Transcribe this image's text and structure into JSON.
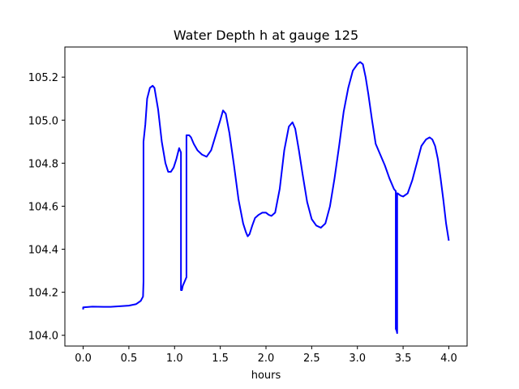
{
  "chart_data": {
    "type": "line",
    "title": "Water Depth h at gauge 125",
    "xlabel": "hours",
    "ylabel": "",
    "xlim": [
      -0.2,
      4.2
    ],
    "ylim": [
      103.95,
      105.34
    ],
    "xticks": [
      0.0,
      0.5,
      1.0,
      1.5,
      2.0,
      2.5,
      3.0,
      3.5,
      4.0
    ],
    "xtick_labels": [
      "0.0",
      "0.5",
      "1.0",
      "1.5",
      "2.0",
      "2.5",
      "3.0",
      "3.5",
      "4.0"
    ],
    "yticks": [
      104.0,
      104.2,
      104.4,
      104.6,
      104.8,
      105.0,
      105.2
    ],
    "ytick_labels": [
      "104.0",
      "104.2",
      "104.4",
      "104.6",
      "104.8",
      "105.0",
      "105.2"
    ],
    "grid": false,
    "series": [
      {
        "color": "#0000ff",
        "x": [
          0.0,
          0.0,
          0.1,
          0.3,
          0.5,
          0.58,
          0.63,
          0.655,
          0.66,
          0.66,
          0.68,
          0.7,
          0.73,
          0.76,
          0.78,
          0.82,
          0.86,
          0.9,
          0.93,
          0.96,
          0.99,
          1.02,
          1.05,
          1.07,
          1.07,
          1.08,
          1.09,
          1.11,
          1.13,
          1.13,
          1.14,
          1.16,
          1.18,
          1.21,
          1.25,
          1.3,
          1.35,
          1.4,
          1.45,
          1.5,
          1.53,
          1.56,
          1.6,
          1.65,
          1.7,
          1.75,
          1.78,
          1.8,
          1.82,
          1.85,
          1.88,
          1.92,
          1.96,
          2.0,
          2.03,
          2.06,
          2.1,
          2.15,
          2.2,
          2.25,
          2.29,
          2.32,
          2.36,
          2.4,
          2.45,
          2.5,
          2.55,
          2.6,
          2.65,
          2.7,
          2.75,
          2.8,
          2.85,
          2.9,
          2.95,
          3.0,
          3.03,
          3.06,
          3.09,
          3.12,
          3.16,
          3.2,
          3.25,
          3.3,
          3.35,
          3.4,
          3.42,
          3.42,
          3.43,
          3.435,
          3.435,
          3.44,
          3.47,
          3.5,
          3.55,
          3.6,
          3.65,
          3.7,
          3.75,
          3.79,
          3.82,
          3.85,
          3.88,
          3.91,
          3.94,
          3.97,
          4.0
        ],
        "y": [
          104.12,
          104.13,
          104.133,
          104.132,
          104.138,
          104.145,
          104.16,
          104.18,
          104.25,
          104.9,
          104.98,
          105.1,
          105.15,
          105.16,
          105.15,
          105.05,
          104.9,
          104.8,
          104.76,
          104.76,
          104.78,
          104.82,
          104.87,
          104.85,
          104.21,
          104.21,
          104.23,
          104.25,
          104.27,
          104.93,
          104.93,
          104.93,
          104.92,
          104.89,
          104.86,
          104.84,
          104.83,
          104.86,
          104.93,
          105.0,
          105.045,
          105.03,
          104.94,
          104.79,
          104.63,
          104.52,
          104.48,
          104.46,
          104.47,
          104.51,
          104.545,
          104.56,
          104.57,
          104.57,
          104.56,
          104.555,
          104.57,
          104.68,
          104.86,
          104.97,
          104.99,
          104.96,
          104.86,
          104.75,
          104.62,
          104.54,
          104.51,
          104.5,
          104.52,
          104.6,
          104.73,
          104.88,
          105.04,
          105.15,
          105.23,
          105.26,
          105.27,
          105.26,
          105.2,
          105.12,
          105.0,
          104.89,
          104.84,
          104.79,
          104.73,
          104.68,
          104.67,
          104.03,
          104.02,
          104.01,
          104.66,
          104.66,
          104.65,
          104.645,
          104.66,
          104.72,
          104.8,
          104.88,
          104.91,
          104.92,
          104.91,
          104.88,
          104.82,
          104.73,
          104.63,
          104.52,
          104.44
        ]
      }
    ]
  }
}
